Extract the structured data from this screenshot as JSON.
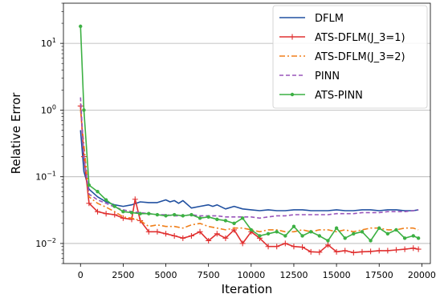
{
  "chart_data": {
    "type": "line",
    "xlabel": "Iteration",
    "ylabel": "Relative Error",
    "yscale": "log",
    "xlim": [
      -1000,
      20500
    ],
    "ylim": [
      0.005,
      40
    ],
    "grid": "horizontal major lines",
    "legend_position": "top-right",
    "x_ticks": [
      0,
      2500,
      5000,
      7500,
      10000,
      12500,
      15000,
      17500,
      20000
    ],
    "x_tick_labels": [
      "0",
      "2500",
      "5000",
      "7500",
      "10000",
      "12500",
      "15000",
      "17500",
      "20000"
    ],
    "y_ticks": [
      0.01,
      0.1,
      1,
      10
    ],
    "y_tick_labels": [
      {
        "base": "10",
        "exp": "−2"
      },
      {
        "base": "10",
        "exp": "−1"
      },
      {
        "base": "10",
        "exp": "0"
      },
      {
        "base": "10",
        "exp": "1"
      }
    ],
    "series": [
      {
        "name": "DFLM",
        "color": "#2050a0",
        "dash": "solid",
        "marker": "none",
        "x": [
          0,
          200,
          500,
          1000,
          1500,
          2000,
          2500,
          3000,
          3500,
          4000,
          4500,
          5000,
          5250,
          5500,
          5750,
          6000,
          6500,
          7000,
          7500,
          7750,
          8000,
          8500,
          9000,
          9500,
          10000,
          10500,
          11000,
          11500,
          12000,
          12500,
          13000,
          13500,
          14000,
          14500,
          15000,
          15500,
          16000,
          16500,
          17000,
          17500,
          18000,
          18500,
          19000,
          19500,
          19800
        ],
        "y": [
          0.5,
          0.12,
          0.065,
          0.05,
          0.042,
          0.038,
          0.036,
          0.038,
          0.042,
          0.041,
          0.041,
          0.045,
          0.042,
          0.044,
          0.04,
          0.044,
          0.034,
          0.036,
          0.038,
          0.036,
          0.038,
          0.033,
          0.036,
          0.033,
          0.032,
          0.031,
          0.032,
          0.031,
          0.031,
          0.032,
          0.032,
          0.031,
          0.031,
          0.031,
          0.032,
          0.031,
          0.031,
          0.032,
          0.032,
          0.031,
          0.032,
          0.032,
          0.031,
          0.031,
          0.032
        ]
      },
      {
        "name": "ATS-DFLM(J_3=1)",
        "color": "#e03030",
        "dash": "solid",
        "marker": "plus",
        "x": [
          0,
          200,
          500,
          1000,
          1500,
          2000,
          2500,
          3000,
          3200,
          3500,
          4000,
          4500,
          5000,
          5500,
          6000,
          6500,
          7000,
          7500,
          8000,
          8500,
          9000,
          9500,
          10000,
          10500,
          11000,
          11500,
          12000,
          12500,
          13000,
          13500,
          14000,
          14500,
          15000,
          15500,
          16000,
          16500,
          17000,
          17500,
          18000,
          18500,
          19000,
          19500,
          19800
        ],
        "y": [
          1.15,
          0.2,
          0.04,
          0.03,
          0.028,
          0.027,
          0.024,
          0.023,
          0.046,
          0.022,
          0.015,
          0.015,
          0.014,
          0.013,
          0.012,
          0.013,
          0.015,
          0.011,
          0.014,
          0.012,
          0.016,
          0.01,
          0.015,
          0.012,
          0.009,
          0.009,
          0.01,
          0.009,
          0.0088,
          0.0075,
          0.0074,
          0.0095,
          0.0075,
          0.0078,
          0.0073,
          0.0075,
          0.0076,
          0.0078,
          0.0078,
          0.008,
          0.0082,
          0.0085,
          0.0082
        ]
      },
      {
        "name": "ATS-DFLM(J_3=2)",
        "color": "#f07f1a",
        "dash": "dashdot",
        "marker": "none",
        "x": [
          0,
          200,
          500,
          1000,
          1500,
          2000,
          2500,
          3000,
          3500,
          4000,
          4500,
          5000,
          5500,
          6000,
          6500,
          7000,
          7500,
          8000,
          8500,
          9000,
          9500,
          10000,
          10500,
          11000,
          11500,
          12000,
          12500,
          13000,
          13500,
          14000,
          14500,
          15000,
          15500,
          16000,
          16500,
          17000,
          17500,
          18000,
          18500,
          19000,
          19500,
          19800
        ],
        "y": [
          1.0,
          0.3,
          0.05,
          0.04,
          0.035,
          0.03,
          0.025,
          0.024,
          0.022,
          0.018,
          0.019,
          0.018,
          0.018,
          0.017,
          0.019,
          0.02,
          0.018,
          0.017,
          0.016,
          0.017,
          0.017,
          0.016,
          0.015,
          0.016,
          0.016,
          0.015,
          0.015,
          0.016,
          0.015,
          0.016,
          0.016,
          0.015,
          0.016,
          0.015,
          0.016,
          0.017,
          0.017,
          0.016,
          0.016,
          0.017,
          0.017,
          0.016
        ]
      },
      {
        "name": "PINN",
        "color": "#9955bb",
        "dash": "dashed",
        "marker": "none",
        "x": [
          0,
          200,
          500,
          1000,
          1500,
          2000,
          2500,
          3000,
          3500,
          4000,
          4500,
          5000,
          5500,
          6000,
          6500,
          7000,
          7500,
          8000,
          8500,
          9000,
          9500,
          10000,
          10500,
          11000,
          11500,
          12000,
          12500,
          13000,
          13500,
          14000,
          14500,
          15000,
          15500,
          16000,
          16500,
          17000,
          17500,
          18000,
          18500,
          19000,
          19500,
          19800
        ],
        "y": [
          1.55,
          0.2,
          0.055,
          0.045,
          0.04,
          0.035,
          0.032,
          0.03,
          0.029,
          0.028,
          0.027,
          0.027,
          0.026,
          0.026,
          0.027,
          0.026,
          0.026,
          0.026,
          0.025,
          0.025,
          0.025,
          0.025,
          0.024,
          0.025,
          0.026,
          0.026,
          0.027,
          0.027,
          0.027,
          0.027,
          0.027,
          0.028,
          0.028,
          0.028,
          0.029,
          0.029,
          0.029,
          0.03,
          0.03,
          0.03,
          0.031,
          0.032
        ]
      },
      {
        "name": "ATS-PINN",
        "color": "#3cb043",
        "dash": "solid",
        "marker": "dot",
        "x": [
          0,
          200,
          500,
          1000,
          1500,
          2000,
          2500,
          3000,
          3500,
          4000,
          4500,
          5000,
          5500,
          6000,
          6500,
          7000,
          7500,
          8000,
          8500,
          9000,
          9500,
          10000,
          10500,
          11000,
          11500,
          12000,
          12500,
          13000,
          13500,
          14000,
          14500,
          15000,
          15500,
          16000,
          16500,
          17000,
          17500,
          18000,
          18500,
          19000,
          19500,
          19800
        ],
        "y": [
          18.0,
          1.0,
          0.075,
          0.06,
          0.045,
          0.036,
          0.03,
          0.029,
          0.028,
          0.028,
          0.027,
          0.026,
          0.027,
          0.026,
          0.027,
          0.024,
          0.025,
          0.023,
          0.022,
          0.02,
          0.024,
          0.016,
          0.013,
          0.014,
          0.015,
          0.013,
          0.018,
          0.013,
          0.015,
          0.013,
          0.011,
          0.017,
          0.012,
          0.014,
          0.015,
          0.011,
          0.017,
          0.014,
          0.016,
          0.012,
          0.013,
          0.012
        ]
      }
    ]
  }
}
